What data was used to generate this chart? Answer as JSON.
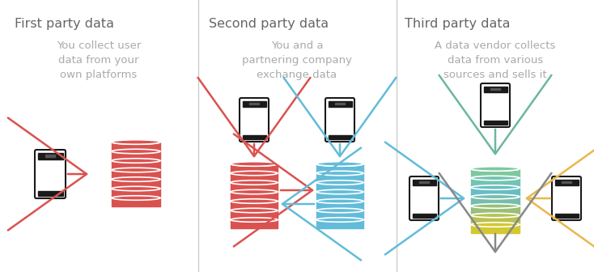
{
  "bg_color": "#ffffff",
  "title1": "First party data",
  "title2": "Second party data",
  "title3": "Third party data",
  "desc1": "You collect user\ndata from your\nown platforms",
  "desc2": "You and a\npartnering company\nexchange data",
  "desc3": "A data vendor collects\ndata from various\nsources and sells it",
  "title_color": "#666666",
  "desc_color": "#aaaaaa",
  "title_fontsize": 11.5,
  "desc_fontsize": 9.5,
  "divider_color": "#cccccc",
  "red_color": "#d9524f",
  "blue_color": "#62bcd9",
  "green_color": "#6bb89a",
  "yellow_color": "#e8b84b",
  "gray_color": "#888888",
  "phone_color": "#1a1a1a",
  "grad_top": "#7ec8a0",
  "grad_mid": "#7abfcc",
  "grad_bot": "#d4c860"
}
